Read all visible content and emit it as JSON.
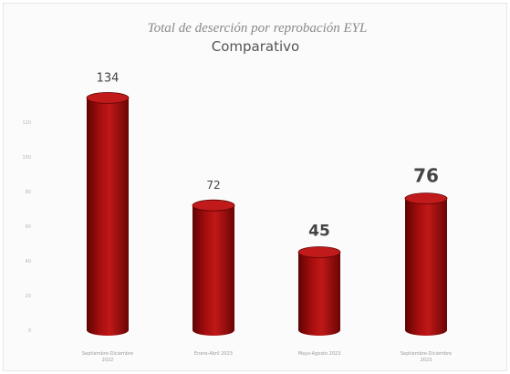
{
  "chart_data": {
    "type": "bar",
    "title": "Total de deserción por reprobación EYL",
    "subtitle": "Comparativo",
    "categories": [
      "Septiembre-Diciembre 2022",
      "Enero-Abril 2023",
      "Mayo-Agosto 2023",
      "Septiembre-Diciembre 2023"
    ],
    "values": [
      134,
      72,
      45,
      76
    ],
    "data_labels": [
      "134",
      "72",
      "45",
      "76"
    ],
    "yticks": [
      0,
      20,
      40,
      60,
      80,
      100,
      120
    ],
    "ylim": [
      0,
      140
    ],
    "grid": false,
    "legend": "none",
    "colors": {
      "bar_body": "#a30d0d",
      "bar_dark": "#5e0303",
      "bar_light": "#d42a2a",
      "bar_top": "#c01a1a",
      "data_label": "#444444"
    }
  }
}
